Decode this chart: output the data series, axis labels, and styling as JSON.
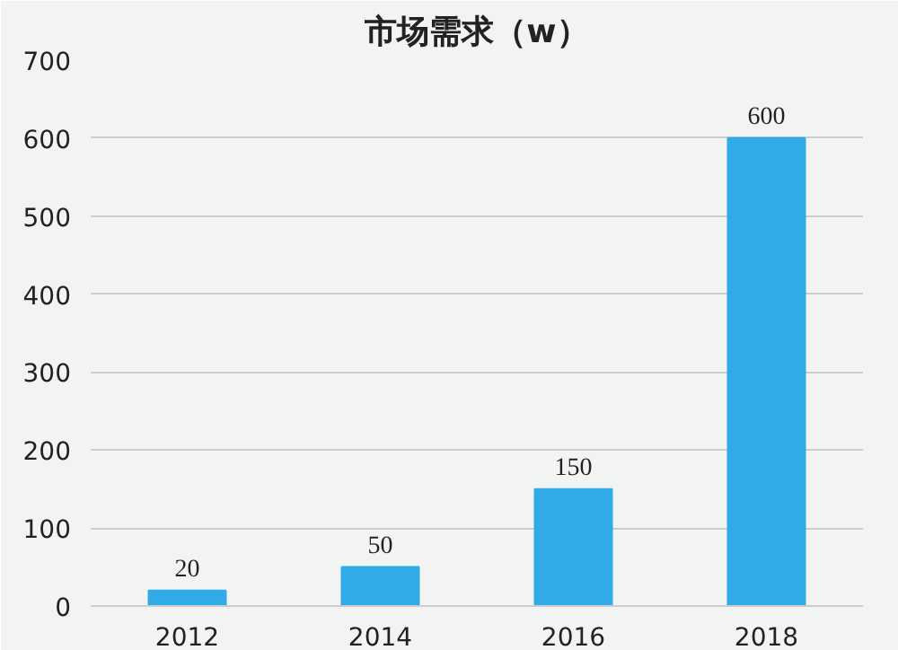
{
  "chart_data": {
    "type": "bar",
    "title": "市场需求（w）",
    "categories": [
      "2012",
      "2014",
      "2016",
      "2018"
    ],
    "values": [
      20,
      50,
      150,
      600
    ],
    "color": "#31abe8",
    "ylim": [
      0,
      700
    ],
    "yticks": [
      0,
      100,
      200,
      300,
      400,
      500,
      600,
      700
    ],
    "grid": "y",
    "data_labels": true
  }
}
